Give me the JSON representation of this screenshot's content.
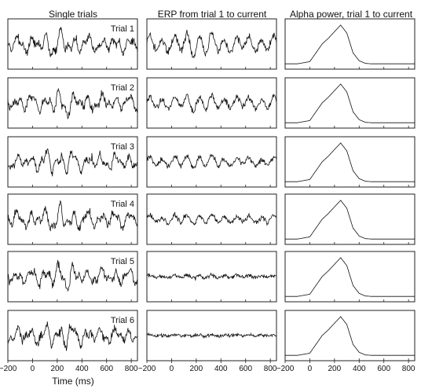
{
  "chart_data": {
    "type": "line",
    "column_titles": [
      "Single trials",
      "ERP from trial 1 to current",
      "Alpha power, trial 1 to current"
    ],
    "row_labels": [
      "Trial 1",
      "Trial 2",
      "Trial 3",
      "Trial 4",
      "Trial 5",
      "Trial 6"
    ],
    "xlabel": "Time (ms)",
    "xlim": [
      -200,
      850
    ],
    "xticks": [
      -200,
      0,
      200,
      400,
      600,
      800
    ],
    "grid": false,
    "legend": "none",
    "single_trial_amplitude_by_trial": [
      1.0,
      1.0,
      1.0,
      1.0,
      1.0,
      1.0
    ],
    "erp_amplitude_by_trial": [
      1.0,
      0.75,
      0.55,
      0.42,
      0.14,
      0.07
    ],
    "alpha_power_curve": {
      "x": [
        -200,
        -100,
        0,
        50,
        100,
        150,
        200,
        250,
        300,
        350,
        400,
        450,
        500,
        600,
        700,
        850
      ],
      "y": [
        0.05,
        0.05,
        0.1,
        0.3,
        0.5,
        0.63,
        0.78,
        0.93,
        0.75,
        0.3,
        0.12,
        0.06,
        0.05,
        0.05,
        0.05,
        0.05
      ]
    },
    "colors": {
      "line": "#111111",
      "frame": "#222222"
    }
  }
}
